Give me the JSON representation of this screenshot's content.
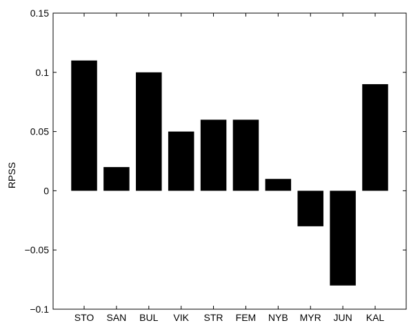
{
  "chart_data": {
    "type": "bar",
    "title": "",
    "xlabel": "",
    "ylabel": "RPSS",
    "ylim": [
      -0.1,
      0.15
    ],
    "yticks": [
      -0.1,
      -0.05,
      0,
      0.05,
      0.1,
      0.15
    ],
    "ytick_labels": [
      "−0.1",
      "−0.05",
      "0",
      "0.05",
      "0.1",
      "0.15"
    ],
    "grid": false,
    "categories": [
      "STO",
      "SAN",
      "BUL",
      "VIK",
      "STR",
      "FEM",
      "NYB",
      "MYR",
      "JUN",
      "KAL"
    ],
    "values": [
      0.11,
      0.02,
      0.1,
      0.05,
      0.06,
      0.06,
      0.01,
      -0.03,
      -0.08,
      0.09
    ],
    "bar_color": "#000000"
  }
}
